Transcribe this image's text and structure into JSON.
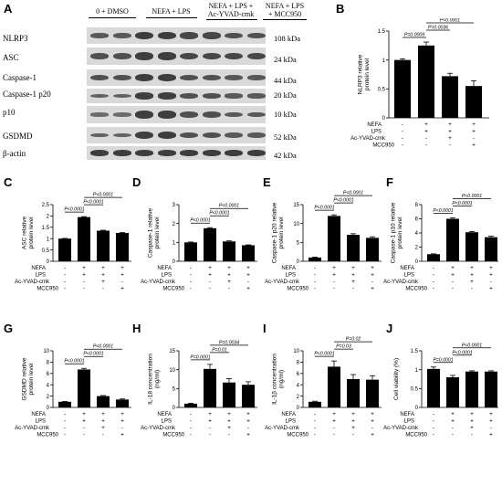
{
  "western_blot": {
    "letter": "A",
    "groups": [
      "0 + DMSO",
      "NEFA + LPS",
      "NEFA + LPS +\nAc-YVAD-cmk",
      "NEFA + LPS\n+ MCC950"
    ],
    "rows": [
      {
        "label": "NLRP3",
        "kda": "108 kDa"
      },
      {
        "label": "ASC",
        "kda": "24 kDa"
      },
      {
        "label": "Caspase-1",
        "kda": "44 kDa"
      },
      {
        "label": "Caspase-1 p20",
        "kda": "20 kDa"
      },
      {
        "label": "p10",
        "kda": "10 kDa"
      },
      {
        "label": "GSDMD",
        "kda": "52 kDa"
      },
      {
        "label": "β-actin",
        "kda": "42 kDa"
      }
    ]
  },
  "treatment_labels": [
    "NEFA",
    "LPS",
    "Ac-YVAD-cmk",
    "MCC950"
  ],
  "treatment_signs": [
    [
      "-",
      "+",
      "+",
      "+"
    ],
    [
      "-",
      "+",
      "+",
      "+"
    ],
    [
      "-",
      "-",
      "+",
      "-"
    ],
    [
      "-",
      "-",
      "-",
      "+"
    ]
  ],
  "chart_data": [
    {
      "id": "B",
      "letter": "B",
      "type": "bar",
      "ylabel": "NLRP3 relative\nprotein level",
      "ylim": [
        0,
        1.5
      ],
      "yticks": [
        0,
        0.5,
        1.0,
        1.5
      ],
      "values": [
        1.0,
        1.25,
        0.72,
        0.55
      ],
      "errors": [
        0.02,
        0.06,
        0.05,
        0.09
      ],
      "sig": [
        {
          "a": 0,
          "b": 1,
          "label": "P=0.0009"
        },
        {
          "a": 1,
          "b": 2,
          "label": "P=0.0036"
        },
        {
          "a": 1,
          "b": 3,
          "label": "P<0.0001"
        }
      ]
    },
    {
      "id": "C",
      "letter": "C",
      "type": "bar",
      "ylabel": "ASC relative\nprotein level",
      "ylim": [
        0,
        2.5
      ],
      "yticks": [
        0,
        0.5,
        1.0,
        1.5,
        2.0,
        2.5
      ],
      "values": [
        1.0,
        1.95,
        1.35,
        1.25
      ],
      "errors": [
        0.01,
        0.02,
        0.02,
        0.02
      ],
      "sig": [
        {
          "a": 0,
          "b": 1,
          "label": "P<0.0001"
        },
        {
          "a": 1,
          "b": 2,
          "label": "P<0.0001"
        },
        {
          "a": 1,
          "b": 3,
          "label": "P<0.0001"
        }
      ]
    },
    {
      "id": "D",
      "letter": "D",
      "type": "bar",
      "ylabel": "Caspase-1 relative\nprotein level",
      "ylim": [
        0,
        3
      ],
      "yticks": [
        0,
        1,
        2,
        3
      ],
      "values": [
        1.0,
        1.75,
        1.05,
        0.85
      ],
      "errors": [
        0.02,
        0.03,
        0.03,
        0.02
      ],
      "sig": [
        {
          "a": 0,
          "b": 1,
          "label": "P<0.0001"
        },
        {
          "a": 1,
          "b": 2,
          "label": "P<0.0001"
        },
        {
          "a": 1,
          "b": 3,
          "label": "P<0.0001"
        }
      ]
    },
    {
      "id": "E",
      "letter": "E",
      "type": "bar",
      "ylabel": "Caspase-1 p20 relative\nprotein level",
      "ylim": [
        0,
        15
      ],
      "yticks": [
        0,
        5,
        10,
        15
      ],
      "values": [
        1.0,
        12.0,
        7.0,
        6.2
      ],
      "errors": [
        0.1,
        0.3,
        0.3,
        0.3
      ],
      "sig": [
        {
          "a": 0,
          "b": 1,
          "label": "P<0.0001"
        },
        {
          "a": 1,
          "b": 2,
          "label": "P<0.0001"
        },
        {
          "a": 1,
          "b": 3,
          "label": "P<0.0001"
        }
      ]
    },
    {
      "id": "F",
      "letter": "F",
      "type": "bar",
      "ylabel": "Caspase-1 p10 relative\nprotein level",
      "ylim": [
        0,
        8
      ],
      "yticks": [
        0,
        2,
        4,
        6,
        8
      ],
      "values": [
        1.0,
        6.0,
        4.1,
        3.4
      ],
      "errors": [
        0.05,
        0.15,
        0.1,
        0.15
      ],
      "sig": [
        {
          "a": 0,
          "b": 1,
          "label": "P<0.0001"
        },
        {
          "a": 1,
          "b": 2,
          "label": "P<0.0001"
        },
        {
          "a": 1,
          "b": 3,
          "label": "P<0.0001"
        }
      ]
    },
    {
      "id": "G",
      "letter": "G",
      "type": "bar",
      "ylabel": "GSDMD relative\nprotein level",
      "ylim": [
        0,
        10
      ],
      "yticks": [
        0,
        2,
        4,
        6,
        8,
        10
      ],
      "values": [
        1.0,
        6.7,
        2.0,
        1.4
      ],
      "errors": [
        0.05,
        0.2,
        0.1,
        0.1
      ],
      "sig": [
        {
          "a": 0,
          "b": 1,
          "label": "P<0.0001"
        },
        {
          "a": 1,
          "b": 2,
          "label": "P<0.0001"
        },
        {
          "a": 1,
          "b": 3,
          "label": "P<0.0001"
        }
      ]
    },
    {
      "id": "H",
      "letter": "H",
      "type": "bar",
      "ylabel": "IL-18 concentration\n(ng/ml)",
      "ylim": [
        0,
        15
      ],
      "yticks": [
        0,
        5,
        10,
        15
      ],
      "values": [
        1.0,
        10.2,
        6.6,
        6.0
      ],
      "errors": [
        0.1,
        1.2,
        1.0,
        0.8
      ],
      "sig": [
        {
          "a": 0,
          "b": 1,
          "label": "P=0.0001"
        },
        {
          "a": 1,
          "b": 2,
          "label": "P=0.01"
        },
        {
          "a": 1,
          "b": 3,
          "label": "P=0.0034"
        }
      ]
    },
    {
      "id": "I",
      "letter": "I",
      "type": "bar",
      "ylabel": "IL-1β concentration\n(ng/ml)",
      "ylim": [
        0,
        10
      ],
      "yticks": [
        0,
        2,
        4,
        6,
        8,
        10
      ],
      "values": [
        1.0,
        7.2,
        5.0,
        4.9
      ],
      "errors": [
        0.1,
        1.0,
        0.8,
        0.7
      ],
      "sig": [
        {
          "a": 0,
          "b": 1,
          "label": "P<0.0001"
        },
        {
          "a": 1,
          "b": 2,
          "label": "P=0.03"
        },
        {
          "a": 1,
          "b": 3,
          "label": "P=0.02"
        }
      ]
    },
    {
      "id": "J",
      "letter": "J",
      "type": "bar",
      "ylabel": "Cell viability (%)",
      "ylim": [
        0,
        1.5
      ],
      "yticks": [
        0,
        0.5,
        1.0,
        1.5
      ],
      "values": [
        1.02,
        0.8,
        0.95,
        0.95
      ],
      "errors": [
        0.05,
        0.05,
        0.02,
        0.02
      ],
      "sig": [
        {
          "a": 0,
          "b": 1,
          "label": "P=0.0001"
        },
        {
          "a": 1,
          "b": 2,
          "label": "P<0.0001"
        },
        {
          "a": 1,
          "b": 3,
          "label": "P<0.0001"
        }
      ]
    }
  ]
}
